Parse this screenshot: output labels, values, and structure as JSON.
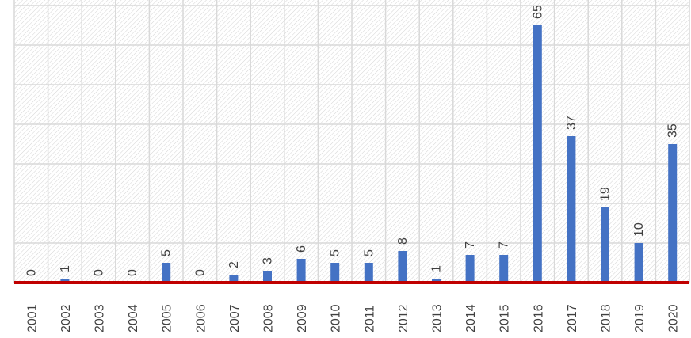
{
  "chart_data": {
    "type": "bar",
    "title": "",
    "xlabel": "",
    "ylabel": "",
    "categories": [
      "2001",
      "2002",
      "2003",
      "2004",
      "2005",
      "2006",
      "2007",
      "2008",
      "2009",
      "2010",
      "2011",
      "2012",
      "2013",
      "2014",
      "2015",
      "2016",
      "2017",
      "2018",
      "2019",
      "2020"
    ],
    "values": [
      0,
      1,
      0,
      0,
      5,
      0,
      2,
      3,
      6,
      5,
      5,
      8,
      1,
      7,
      7,
      65,
      37,
      19,
      10,
      35
    ],
    "data_labels": [
      "0",
      "1",
      "0",
      "0",
      "5",
      "0",
      "2",
      "3",
      "6",
      "5",
      "5",
      "8",
      "1",
      "7",
      "7",
      "65",
      "37",
      "19",
      "10",
      "35"
    ],
    "ylim": [
      0,
      70
    ],
    "grid": true,
    "legend": "none",
    "colors": {
      "bar": "#4472c4",
      "axis": "#c00000",
      "grid": "#d9d9d9",
      "hatch": "#d0d0d0",
      "text": "#404040"
    }
  }
}
